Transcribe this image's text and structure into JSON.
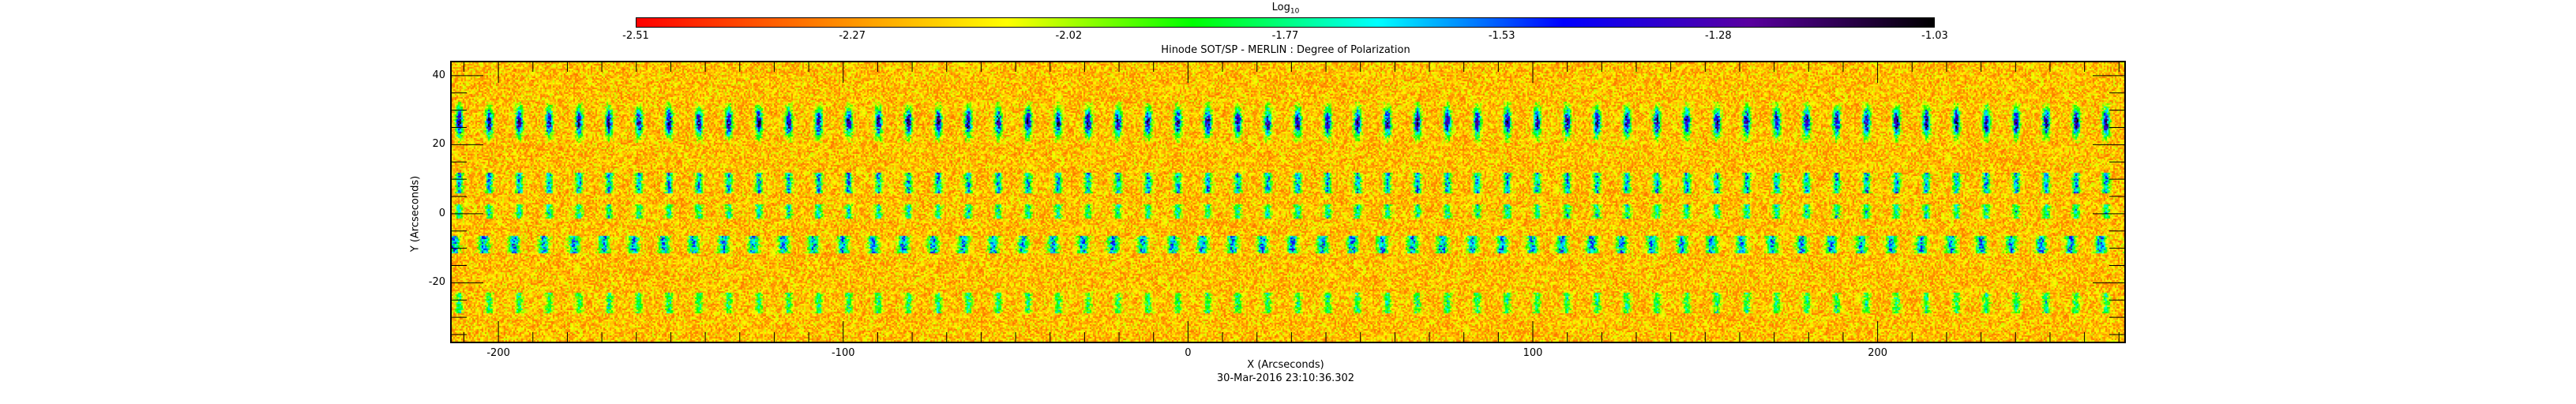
{
  "chart_data": {
    "type": "heatmap",
    "title": "Hinode SOT/SP - MERLIN : Degree of Polarization",
    "xlabel": "X (Arcseconds)",
    "ylabel": "Y (Arcseconds)",
    "date_label": "30-Mar-2016 23:10:36.302",
    "xlim": [
      -214,
      272
    ],
    "ylim": [
      -37.5,
      44.3
    ],
    "x_ticks": [
      -200,
      -100,
      0,
      100,
      200
    ],
    "y_ticks": [
      -20,
      0,
      20,
      40
    ],
    "colorbar": {
      "title": "Log",
      "title_subscript": "10",
      "ticks": [
        "-2.51",
        "-2.27",
        "-2.02",
        "-1.77",
        "-1.53",
        "-1.28",
        "-1.03"
      ],
      "range": [
        -2.51,
        -1.03
      ],
      "colormap": [
        "#ff0000",
        "#ff8000",
        "#ffff00",
        "#00ff00",
        "#00ffff",
        "#0000ff",
        "#5a00a0",
        "#000000"
      ]
    }
  }
}
